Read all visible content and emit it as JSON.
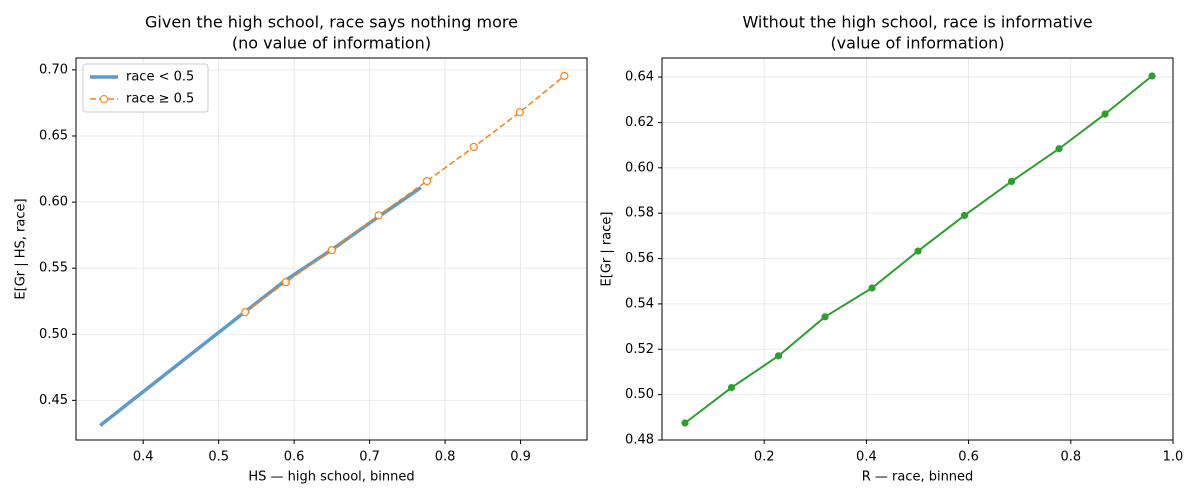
{
  "chart_data": [
    {
      "type": "line",
      "title": "Given the high school, race says nothing more",
      "subtitle": "(no value of information)",
      "x_label": "HS — high school, binned",
      "y_label": "E[Gr | HS, race]",
      "xlim": [
        0.311,
        0.988
      ],
      "ylim": [
        0.42,
        0.709
      ],
      "xticks": [
        0.4,
        {
          "value": 0.5,
          "label": "0.5"
        },
        0.6,
        0.7,
        0.8,
        0.9
      ],
      "yticks": [
        0.45,
        {
          "value": 0.5,
          "label": "0.50"
        },
        0.55,
        {
          "value": 0.6,
          "label": "0.60"
        },
        0.65,
        {
          "value": 0.7,
          "label": "0.70"
        }
      ],
      "grid": true,
      "legend": "upper left",
      "series": [
        {
          "name": "race < 0.5",
          "color": "#5c9cc9",
          "style": "solid",
          "width": 3.5,
          "marker": "none",
          "x": [
            0.343,
            0.535,
            0.589,
            0.65,
            0.712,
            0.768
          ],
          "values": [
            0.431,
            0.517,
            0.541,
            0.564,
            0.589,
            0.611
          ]
        },
        {
          "name": "race ≥ 0.5",
          "color": "#ff7f0e",
          "style": "dashed",
          "width": 1.5,
          "marker": "open-circle",
          "x": [
            0.535,
            0.589,
            0.65,
            0.712,
            0.776,
            0.838,
            0.899,
            0.958
          ],
          "values": [
            0.5167,
            0.5394,
            0.5636,
            0.59,
            0.6159,
            0.6417,
            0.668,
            0.6955
          ]
        }
      ]
    },
    {
      "type": "line",
      "title": "Without the high school, race is informative",
      "subtitle": "(value of information)",
      "x_label": "R — race, binned",
      "y_label": "E[Gr | race]",
      "xlim": [
        0,
        1
      ],
      "ylim": [
        0.48,
        0.6484
      ],
      "xticks": [
        0.2,
        0.4,
        0.6,
        0.8,
        {
          "value": 1,
          "label": "1.0"
        }
      ],
      "yticks": [
        0.48,
        {
          "value": 0.5,
          "label": "0.50"
        },
        0.52,
        0.54,
        0.56,
        0.58,
        {
          "value": 0.6,
          "label": "0.60"
        },
        0.62,
        0.64
      ],
      "grid": true,
      "series": [
        {
          "color": "#2ca02c",
          "style": "solid",
          "width": 2,
          "marker": "filled-circle",
          "x": [
            0.045,
            0.136,
            0.228,
            0.319,
            0.411,
            0.501,
            0.592,
            0.684,
            0.777,
            0.867,
            0.959
          ],
          "values": [
            0.4875,
            0.5031,
            0.5171,
            0.5343,
            0.547,
            0.5633,
            0.579,
            0.594,
            0.6084,
            0.6237,
            0.6405
          ]
        }
      ]
    }
  ]
}
